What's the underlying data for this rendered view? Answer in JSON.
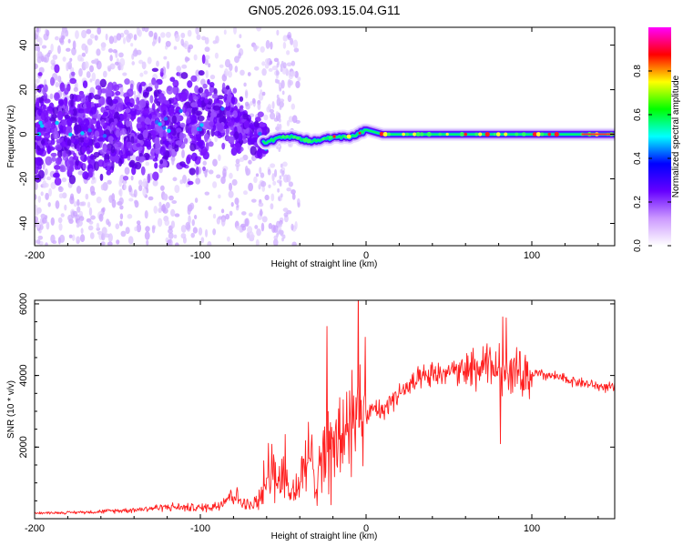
{
  "figure": {
    "title": "GN05.2026.093.15.04.G11"
  },
  "chart_data": [
    {
      "type": "heatmap",
      "title": "GN05.2026.093.15.04.G11",
      "xlabel": "Height of straight line (km)",
      "ylabel": "Frequency (Hz)",
      "xlim": [
        -200,
        150
      ],
      "ylim": [
        -50,
        48
      ],
      "xticks": [
        -200,
        -100,
        0,
        100
      ],
      "xtick_labels": [
        "-200",
        "-100",
        "0",
        "100"
      ],
      "yticks": [
        -40,
        -20,
        0,
        20,
        40
      ],
      "ytick_labels": [
        "-40",
        "-20",
        "0",
        "20",
        "40"
      ],
      "ridge": {
        "x": [
          -200,
          -180,
          -160,
          -140,
          -120,
          -110,
          -100,
          -92,
          -85,
          -80,
          -75,
          -70,
          -65,
          -60,
          -55,
          -50,
          -45,
          -40,
          -35,
          -30,
          -25,
          -20,
          -15,
          -10,
          -5,
          0,
          5,
          10,
          20,
          40,
          60,
          80,
          100,
          120,
          150
        ],
        "y": [
          3,
          2,
          2,
          3,
          4,
          6,
          5,
          11,
          9,
          7,
          4,
          1,
          -2,
          -4,
          -2,
          -1,
          -1,
          -2,
          -3,
          -3,
          -2,
          -1,
          -1,
          -1,
          0,
          2,
          1,
          0,
          0,
          0,
          0,
          0,
          0,
          0,
          0
        ]
      },
      "colorbar": {
        "label": "Normalized spectral amplitude",
        "range": [
          0.0,
          1.0
        ],
        "ticks": [
          0.0,
          0.2,
          0.4,
          0.6,
          0.8
        ],
        "tick_labels": [
          "0.0",
          "0.2",
          "0.4",
          "0.6",
          "0.8"
        ],
        "colors": [
          "#ffffff",
          "#cc99ff",
          "#6600ff",
          "#0000ff",
          "#00ffff",
          "#00ff00",
          "#ffff00",
          "#ff0000",
          "#ff00ff"
        ]
      }
    },
    {
      "type": "line",
      "xlabel": "Height of straight line (km)",
      "ylabel": "SNR (10 * v/v)",
      "xlim": [
        -200,
        150
      ],
      "ylim": [
        0,
        6100
      ],
      "xticks": [
        -200,
        -100,
        0,
        100
      ],
      "xtick_labels": [
        "-200",
        "-100",
        "0",
        "100"
      ],
      "yticks": [
        2000,
        4000,
        6000
      ],
      "ytick_labels": [
        "2000",
        "4000",
        "6000"
      ],
      "series": [
        {
          "name": "SNR",
          "color": "#ff2020",
          "x": [
            -200,
            -180,
            -160,
            -140,
            -120,
            -100,
            -90,
            -85,
            -80,
            -75,
            -70,
            -65,
            -60,
            -55,
            -50,
            -45,
            -40,
            -35,
            -30,
            -25,
            -20,
            -15,
            -10,
            -5,
            0,
            5,
            10,
            15,
            20,
            30,
            40,
            50,
            60,
            70,
            80,
            90,
            100,
            110,
            120,
            130,
            140,
            150
          ],
          "y": [
            160,
            170,
            200,
            250,
            330,
            300,
            360,
            550,
            700,
            450,
            350,
            500,
            900,
            1300,
            1000,
            700,
            1000,
            1600,
            1400,
            2000,
            1800,
            2300,
            2700,
            2500,
            2800,
            3100,
            3000,
            3300,
            3500,
            3800,
            4000,
            4100,
            4100,
            4200,
            4200,
            4100,
            4050,
            4000,
            3900,
            3800,
            3700,
            3650
          ]
        }
      ]
    }
  ]
}
